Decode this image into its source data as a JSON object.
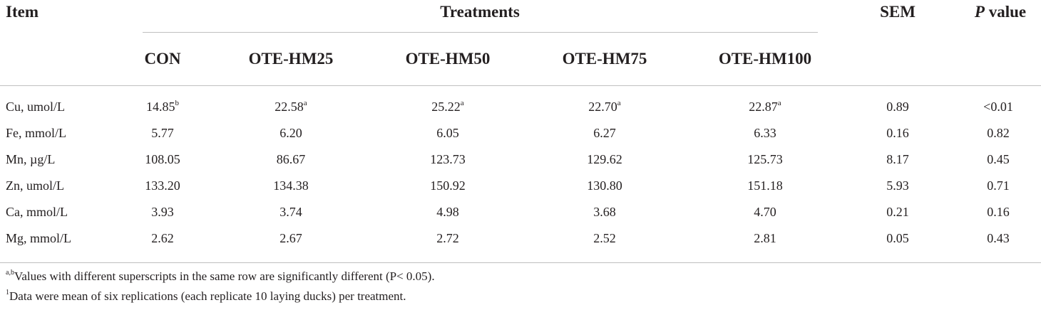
{
  "table": {
    "header": {
      "item": "Item",
      "treatments": "Treatments",
      "sem": "SEM",
      "p_italic": "P",
      "p_rest": " value",
      "groups": [
        "CON",
        "OTE-HM25",
        "OTE-HM50",
        "OTE-HM75",
        "OTE-HM100"
      ]
    },
    "rows": [
      {
        "item": "Cu, umol/L",
        "values": [
          "14.85",
          "22.58",
          "25.22",
          "22.70",
          "22.87"
        ],
        "sups": [
          "b",
          "a",
          "a",
          "a",
          "a"
        ],
        "sem": "0.89",
        "p": "<0.01"
      },
      {
        "item": "Fe, mmol/L",
        "values": [
          "5.77",
          "6.20",
          "6.05",
          "6.27",
          "6.33"
        ],
        "sups": [
          "",
          "",
          "",
          "",
          ""
        ],
        "sem": "0.16",
        "p": "0.82"
      },
      {
        "item": "Mn, µg/L",
        "values": [
          "108.05",
          "86.67",
          "123.73",
          "129.62",
          "125.73"
        ],
        "sups": [
          "",
          "",
          "",
          "",
          ""
        ],
        "sem": "8.17",
        "p": "0.45"
      },
      {
        "item": "Zn, umol/L",
        "values": [
          "133.20",
          "134.38",
          "150.92",
          "130.80",
          "151.18"
        ],
        "sups": [
          "",
          "",
          "",
          "",
          ""
        ],
        "sem": "5.93",
        "p": "0.71"
      },
      {
        "item": "Ca, mmol/L",
        "values": [
          "3.93",
          "3.74",
          "4.98",
          "3.68",
          "4.70"
        ],
        "sups": [
          "",
          "",
          "",
          "",
          ""
        ],
        "sem": "0.21",
        "p": "0.16"
      },
      {
        "item": "Mg, mmol/L",
        "values": [
          "2.62",
          "2.67",
          "2.72",
          "2.52",
          "2.81"
        ],
        "sups": [
          "",
          "",
          "",
          "",
          ""
        ],
        "sem": "0.05",
        "p": "0.43"
      }
    ]
  },
  "footnotes": [
    {
      "sup": "a,b",
      "text": "Values with different superscripts in the same row are significantly different (P< 0.05)."
    },
    {
      "sup": "1",
      "text": "Data were mean of six replications (each replicate 10 laying ducks) per treatment."
    }
  ]
}
